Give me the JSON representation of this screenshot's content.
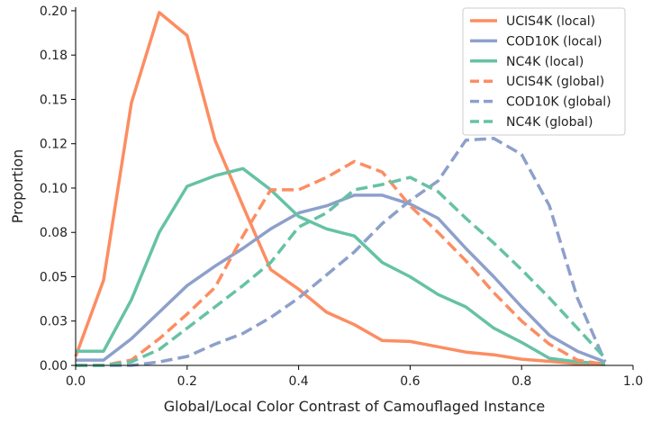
{
  "chart_data": {
    "type": "line",
    "title": "",
    "xlabel": "Global/Local Color Contrast of Camouflaged Instance",
    "ylabel": "Proportion",
    "xlim": [
      0.0,
      1.0
    ],
    "ylim": [
      0.0,
      0.202
    ],
    "x_ticks": [
      0.0,
      0.2,
      0.4,
      0.6,
      0.8,
      1.0
    ],
    "x_tick_labels": [
      "0.0",
      "0.2",
      "0.4",
      "0.6",
      "0.8",
      "1.0"
    ],
    "y_ticks": [
      0.0,
      0.025,
      0.05,
      0.075,
      0.1,
      0.125,
      0.15,
      0.175,
      0.2
    ],
    "y_tick_labels": [
      "0.00",
      "0.03",
      "0.05",
      "0.08",
      "0.10",
      "0.12",
      "0.15",
      "0.18",
      "0.20"
    ],
    "grid": false,
    "legend_position": "top-right",
    "x": [
      0.0,
      0.05,
      0.1,
      0.15,
      0.2,
      0.25,
      0.3,
      0.35,
      0.4,
      0.45,
      0.5,
      0.55,
      0.6,
      0.65,
      0.7,
      0.75,
      0.8,
      0.85,
      0.9,
      0.95
    ],
    "series": [
      {
        "name": "UCIS4K (local)",
        "color": "#fc8d62",
        "style": "solid",
        "values": [
          0.005,
          0.048,
          0.148,
          0.199,
          0.186,
          0.127,
          0.09,
          0.054,
          0.043,
          0.03,
          0.023,
          0.014,
          0.0135,
          0.0105,
          0.0075,
          0.006,
          0.0035,
          0.0023,
          0.001,
          0.0005
        ]
      },
      {
        "name": "COD10K (local)",
        "color": "#8da0cb",
        "style": "solid",
        "values": [
          0.003,
          0.003,
          0.015,
          0.03,
          0.045,
          0.056,
          0.066,
          0.077,
          0.086,
          0.09,
          0.096,
          0.096,
          0.091,
          0.083,
          0.066,
          0.05,
          0.033,
          0.017,
          0.008,
          0.002
        ]
      },
      {
        "name": "NC4K (local)",
        "color": "#66c2a5",
        "style": "solid",
        "values": [
          0.008,
          0.008,
          0.037,
          0.075,
          0.101,
          0.107,
          0.111,
          0.099,
          0.084,
          0.077,
          0.073,
          0.058,
          0.05,
          0.04,
          0.033,
          0.021,
          0.013,
          0.004,
          0.002,
          0.001
        ]
      },
      {
        "name": "UCIS4K (global)",
        "color": "#fc8d62",
        "style": "dashed",
        "values": [
          0.0,
          0.0,
          0.003,
          0.015,
          0.029,
          0.044,
          0.073,
          0.099,
          0.099,
          0.106,
          0.115,
          0.109,
          0.09,
          0.075,
          0.059,
          0.041,
          0.025,
          0.012,
          0.003,
          0.0005
        ]
      },
      {
        "name": "COD10K (global)",
        "color": "#8da0cb",
        "style": "dashed",
        "values": [
          0.0,
          0.0,
          0.0,
          0.002,
          0.005,
          0.012,
          0.018,
          0.027,
          0.038,
          0.051,
          0.064,
          0.08,
          0.093,
          0.104,
          0.127,
          0.128,
          0.119,
          0.09,
          0.038,
          0.002
        ]
      },
      {
        "name": "NC4K (global)",
        "color": "#66c2a5",
        "style": "dashed",
        "values": [
          0.0,
          0.0,
          0.002,
          0.009,
          0.021,
          0.033,
          0.045,
          0.058,
          0.078,
          0.086,
          0.099,
          0.102,
          0.106,
          0.098,
          0.083,
          0.069,
          0.054,
          0.038,
          0.021,
          0.004
        ]
      }
    ]
  }
}
